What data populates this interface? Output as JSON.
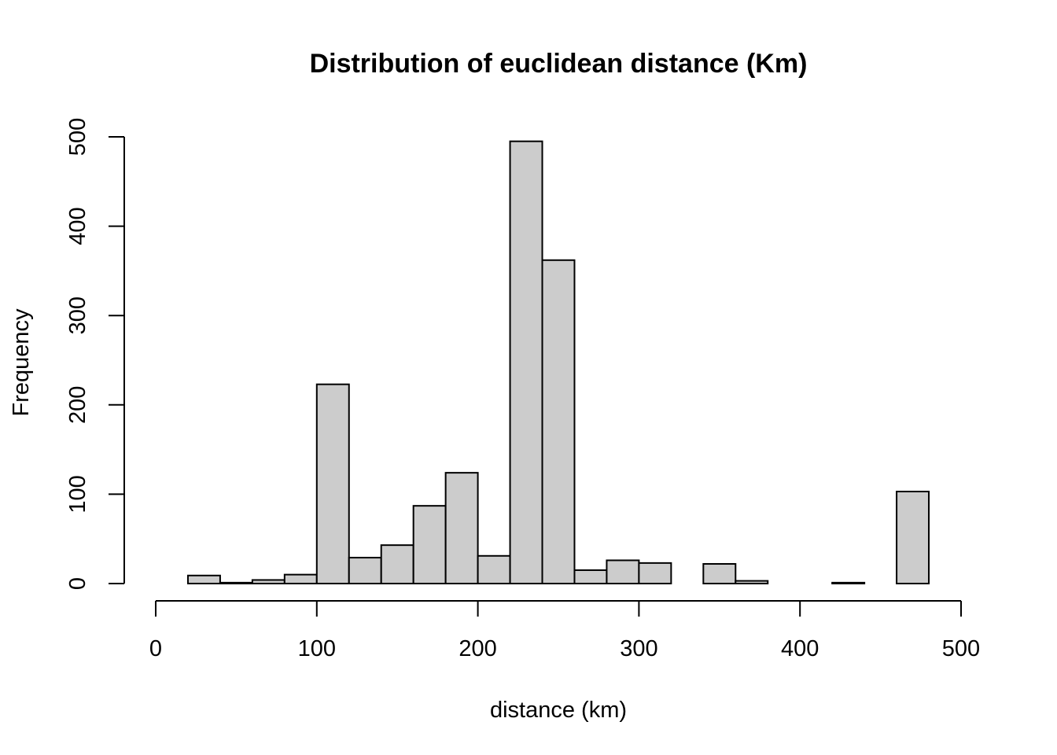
{
  "chart_data": {
    "type": "bar",
    "title": "Distribution of euclidean distance (Km)",
    "xlabel": "distance (km)",
    "ylabel": "Frequency",
    "bar_color": "#cccccc",
    "outline_color": "#000000",
    "bin_width": 20,
    "bins": [
      {
        "start": 20,
        "end": 40,
        "count": 9
      },
      {
        "start": 40,
        "end": 60,
        "count": 1
      },
      {
        "start": 60,
        "end": 80,
        "count": 4
      },
      {
        "start": 80,
        "end": 100,
        "count": 10
      },
      {
        "start": 100,
        "end": 120,
        "count": 223
      },
      {
        "start": 120,
        "end": 140,
        "count": 29
      },
      {
        "start": 140,
        "end": 160,
        "count": 43
      },
      {
        "start": 160,
        "end": 180,
        "count": 87
      },
      {
        "start": 180,
        "end": 200,
        "count": 124
      },
      {
        "start": 200,
        "end": 220,
        "count": 31
      },
      {
        "start": 220,
        "end": 240,
        "count": 495
      },
      {
        "start": 240,
        "end": 260,
        "count": 362
      },
      {
        "start": 260,
        "end": 280,
        "count": 15
      },
      {
        "start": 280,
        "end": 300,
        "count": 26
      },
      {
        "start": 300,
        "end": 320,
        "count": 23
      },
      {
        "start": 320,
        "end": 340,
        "count": 0
      },
      {
        "start": 340,
        "end": 360,
        "count": 22
      },
      {
        "start": 360,
        "end": 380,
        "count": 3
      },
      {
        "start": 380,
        "end": 400,
        "count": 0
      },
      {
        "start": 400,
        "end": 420,
        "count": 0
      },
      {
        "start": 420,
        "end": 440,
        "count": 1
      },
      {
        "start": 440,
        "end": 460,
        "count": 0
      },
      {
        "start": 460,
        "end": 480,
        "count": 103
      }
    ],
    "xlim": [
      0,
      500
    ],
    "ylim": [
      0,
      500
    ],
    "x_ticks": [
      0,
      100,
      200,
      300,
      400,
      500
    ],
    "y_ticks": [
      0,
      100,
      200,
      300,
      400,
      500
    ],
    "x_tick_labels": [
      "0",
      "100",
      "200",
      "300",
      "400",
      "500"
    ],
    "y_tick_labels": [
      "0",
      "100",
      "200",
      "300",
      "400",
      "500"
    ],
    "grid": false,
    "legend": "none"
  }
}
